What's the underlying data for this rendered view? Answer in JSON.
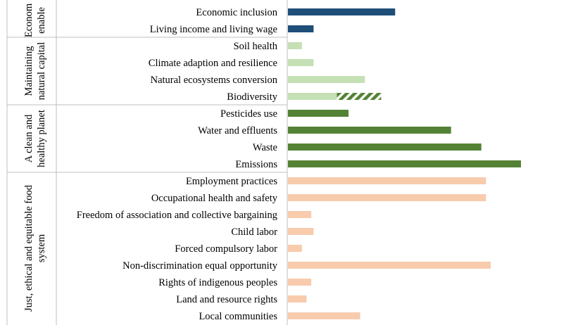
{
  "chart_data": {
    "type": "bar",
    "orientation": "horizontal",
    "title": "",
    "xlabel": "",
    "ylabel": "",
    "grid": false,
    "legend": "none",
    "xlim": [
      0,
      100
    ],
    "groups": [
      {
        "label_lines": [
          "Econom",
          "enable"
        ],
        "categories": [
          "Economic inclusion",
          "Living income and living wage"
        ]
      },
      {
        "label_lines": [
          "Maintaining",
          "natural capital"
        ],
        "categories": [
          "Soil health",
          "Climate adaption and resilience",
          "Natural ecosystems conversion",
          "Biodiversity"
        ]
      },
      {
        "label_lines": [
          "A clean and",
          "healthy planet"
        ],
        "categories": [
          "Pesticides use",
          "Water and effluents",
          "Waste",
          "Emissions"
        ]
      },
      {
        "label_lines": [
          "Just, ethical and equitable food",
          "system"
        ],
        "categories": [
          "Employment practices",
          "Occupational health and safety",
          "Freedom of association and collective bargaining",
          "Child labor",
          "Forced compulsory labor",
          "Non-discrimination equal opportunity",
          "Rights of indigenous peoples",
          "Land and resource rights",
          "Local communities"
        ]
      }
    ],
    "categories": [
      "Economic inclusion",
      "Living income and living wage",
      "Soil health",
      "Climate adaption and resilience",
      "Natural ecosystems conversion",
      "Biodiversity",
      "Pesticides use",
      "Water and effluents",
      "Waste",
      "Emissions",
      "Employment practices",
      "Occupational health and safety",
      "Freedom of association and collective bargaining",
      "Child labor",
      "Forced compulsory labor",
      "Non-discrimination equal opportunity",
      "Rights of indigenous peoples",
      "Land and resource rights",
      "Local communities"
    ],
    "values": [
      46,
      11,
      6,
      11,
      33,
      40,
      26,
      70,
      83,
      100,
      85,
      85,
      10,
      11,
      6,
      87,
      10,
      8,
      31
    ],
    "hatched_segments": [
      {
        "category": "Biodiversity",
        "from": 21,
        "to": 40
      }
    ],
    "colors": {
      "Economic inclusion": "#1f4e79",
      "Living income and living wage": "#1f4e79",
      "Soil health": "#c5e0b4",
      "Climate adaption and resilience": "#c5e0b4",
      "Natural ecosystems conversion": "#c5e0b4",
      "Biodiversity": "#c5e0b4",
      "Pesticides use": "#548235",
      "Water and effluents": "#548235",
      "Waste": "#548235",
      "Emissions": "#548235",
      "Employment practices": "#f8cbad",
      "Occupational health and safety": "#f8cbad",
      "Freedom of association and collective bargaining": "#f8cbad",
      "Child labor": "#f8cbad",
      "Forced compulsory labor": "#f8cbad",
      "Non-discrimination equal opportunity": "#f8cbad",
      "Rights of indigenous peoples": "#f8cbad",
      "Land and resource rights": "#f8cbad",
      "Local communities": "#f8cbad"
    },
    "hatch_color": "#548235"
  }
}
